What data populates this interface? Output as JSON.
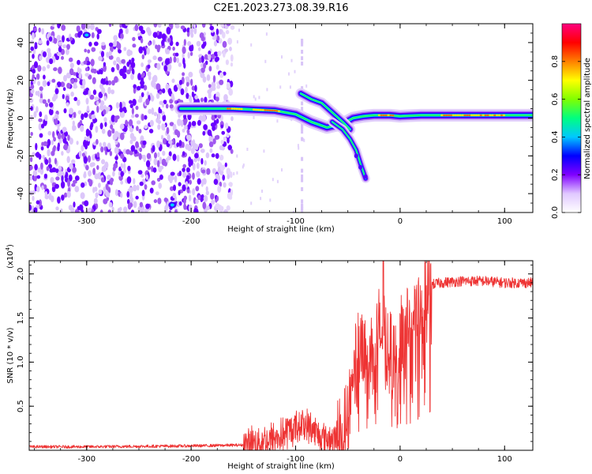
{
  "title": "C2E1.2023.273.08.39.R16",
  "chart_data": [
    {
      "type": "heatmap",
      "xlabel": "Height of straight line (km)",
      "ylabel": "Frequency (Hz)",
      "xlim": [
        -355,
        127
      ],
      "ylim": [
        -50,
        50
      ],
      "xticks": [
        -300,
        -200,
        -100,
        0,
        100
      ],
      "xtick_labels": [
        "-300",
        "-200",
        "-100",
        "0",
        "100"
      ],
      "yticks": [
        -40,
        -20,
        0,
        20,
        40
      ],
      "ytick_labels": [
        "-40",
        "-20",
        "0",
        "20",
        "40"
      ],
      "colorbar": {
        "label": "Normalized spectral amplitude",
        "range": [
          0,
          1
        ],
        "ticks": [
          0,
          0.2,
          0.4,
          0.6,
          0.8
        ],
        "tick_labels": [
          "0.0",
          "0.2",
          "0.4",
          "0.6",
          "0.8"
        ],
        "colors": [
          "#ffffff",
          "#e0c8ff",
          "#8000ff",
          "#0000ff",
          "#00c8ff",
          "#00ff80",
          "#80ff00",
          "#ffff00",
          "#ff8000",
          "#ff0000",
          "#ff0080"
        ]
      },
      "main_trace": {
        "x": [
          -210,
          -180,
          -160,
          -140,
          -120,
          -100,
          -85,
          -70,
          -55,
          -45,
          -35,
          -25,
          -10,
          0,
          20,
          50,
          80,
          100,
          127
        ],
        "y": [
          5,
          5,
          5,
          4.5,
          4,
          2,
          -2,
          -5,
          -3,
          0,
          1,
          1.5,
          1.5,
          1,
          1.5,
          1.5,
          1.5,
          1.5,
          1.5
        ]
      },
      "upper_branch": {
        "x": [
          -95,
          -85,
          -75,
          -65,
          -55,
          -48
        ],
        "y": [
          13,
          10,
          8,
          3,
          -2,
          -6
        ]
      },
      "lower_branch": {
        "x": [
          -65,
          -55,
          -48,
          -42,
          -38,
          -33
        ],
        "y": [
          -2,
          -6,
          -11,
          -17,
          -24,
          -32
        ]
      },
      "scatter_region_x": [
        -355,
        -160
      ]
    },
    {
      "type": "line",
      "xlabel": "Height of straight line (km)",
      "ylabel": "SNR (10 * v/v)",
      "y_multiplier": "(x10",
      "y_exponent": "4",
      "xlim": [
        -355,
        127
      ],
      "ylim": [
        0,
        2.15
      ],
      "xticks": [
        -300,
        -200,
        -100,
        0,
        100
      ],
      "xtick_labels": [
        "-300",
        "-200",
        "-100",
        "0",
        "100"
      ],
      "yticks": [
        0.5,
        1.0,
        1.5,
        2.0
      ],
      "ytick_labels": [
        "0.5",
        "1.0",
        "1.5",
        "2.0"
      ],
      "series_color": "#ee3333",
      "envelope": {
        "x": [
          -355,
          -300,
          -200,
          -150,
          -130,
          -115,
          -105,
          -95,
          -85,
          -75,
          -65,
          -55,
          -50,
          -45,
          -40,
          -35,
          -30,
          -25,
          -20,
          -15,
          -10,
          -5,
          0,
          5,
          10,
          15,
          20,
          25,
          30,
          40,
          60,
          80,
          100,
          127
        ],
        "y": [
          0.04,
          0.04,
          0.05,
          0.06,
          0.1,
          0.15,
          0.22,
          0.3,
          0.25,
          0.15,
          0.12,
          0.2,
          0.5,
          0.8,
          1.0,
          1.1,
          1.2,
          1.3,
          1.35,
          1.3,
          1.15,
          1.1,
          1.2,
          1.3,
          1.5,
          1.65,
          1.75,
          1.8,
          1.88,
          1.9,
          1.92,
          1.92,
          1.9,
          1.9
        ]
      },
      "peak": {
        "x": -16,
        "y": 2.15
      }
    }
  ]
}
